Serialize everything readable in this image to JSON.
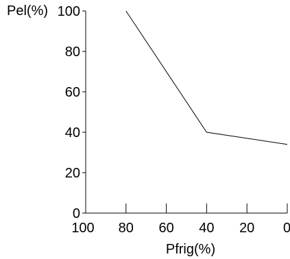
{
  "chart_data": {
    "type": "line",
    "xlabel": "Pfrig(%)",
    "ylabel": "Pel(%)",
    "x_reversed": true,
    "xlim": [
      100,
      0
    ],
    "ylim": [
      0,
      100
    ],
    "xticks": [
      100,
      80,
      60,
      40,
      20,
      0
    ],
    "yticks": [
      0,
      20,
      40,
      60,
      80,
      100
    ],
    "xtick_labels": [
      "100",
      "80",
      "60",
      "40",
      "20",
      "0"
    ],
    "ytick_labels": [
      "0",
      "20",
      "40",
      "60",
      "80",
      "100"
    ],
    "grid": false,
    "series": [
      {
        "x": [
          80,
          40,
          0
        ],
        "y": [
          100,
          40,
          34
        ]
      }
    ]
  }
}
